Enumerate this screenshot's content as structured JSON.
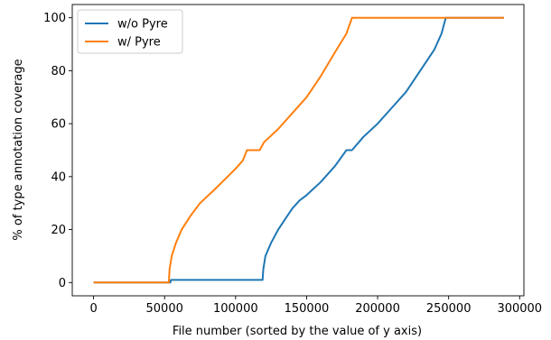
{
  "chart_data": {
    "type": "line",
    "title": "",
    "xlabel": "File number (sorted by the value of y axis)",
    "ylabel": "% of type annotation coverage",
    "xlim": [
      -15000,
      303000
    ],
    "ylim": [
      -5,
      105
    ],
    "xticks": [
      0,
      50000,
      100000,
      150000,
      200000,
      250000,
      300000
    ],
    "xtick_labels": [
      "0",
      "50000",
      "100000",
      "150000",
      "200000",
      "250000",
      "300000"
    ],
    "yticks": [
      0,
      20,
      40,
      60,
      80,
      100
    ],
    "ytick_labels": [
      "0",
      "20",
      "40",
      "60",
      "80",
      "100"
    ],
    "grid": false,
    "legend_position": "upper-left",
    "series": [
      {
        "name": "w/o Pyre",
        "color": "#1f77b4",
        "points": [
          [
            0,
            0
          ],
          [
            54000,
            0
          ],
          [
            54500,
            1
          ],
          [
            119000,
            1
          ],
          [
            119500,
            5
          ],
          [
            121000,
            10
          ],
          [
            125000,
            15
          ],
          [
            130000,
            20
          ],
          [
            135000,
            24
          ],
          [
            140000,
            28
          ],
          [
            145000,
            31
          ],
          [
            150000,
            33
          ],
          [
            160000,
            38
          ],
          [
            170000,
            44
          ],
          [
            178000,
            50
          ],
          [
            182000,
            50
          ],
          [
            190000,
            55
          ],
          [
            200000,
            60
          ],
          [
            210000,
            66
          ],
          [
            220000,
            72
          ],
          [
            230000,
            80
          ],
          [
            240000,
            88
          ],
          [
            245000,
            94
          ],
          [
            248000,
            100
          ],
          [
            289000,
            100
          ]
        ]
      },
      {
        "name": "w/ Pyre",
        "color": "#ff7f0e",
        "points": [
          [
            0,
            0
          ],
          [
            53000,
            0
          ],
          [
            53500,
            5
          ],
          [
            55000,
            10
          ],
          [
            58000,
            15
          ],
          [
            62000,
            20
          ],
          [
            68000,
            25
          ],
          [
            75000,
            30
          ],
          [
            85000,
            35
          ],
          [
            100000,
            43
          ],
          [
            105000,
            46
          ],
          [
            108000,
            50
          ],
          [
            117000,
            50
          ],
          [
            120000,
            53
          ],
          [
            130000,
            58
          ],
          [
            140000,
            64
          ],
          [
            150000,
            70
          ],
          [
            160000,
            78
          ],
          [
            170000,
            87
          ],
          [
            178000,
            94
          ],
          [
            182000,
            100
          ],
          [
            289000,
            100
          ]
        ]
      }
    ]
  }
}
